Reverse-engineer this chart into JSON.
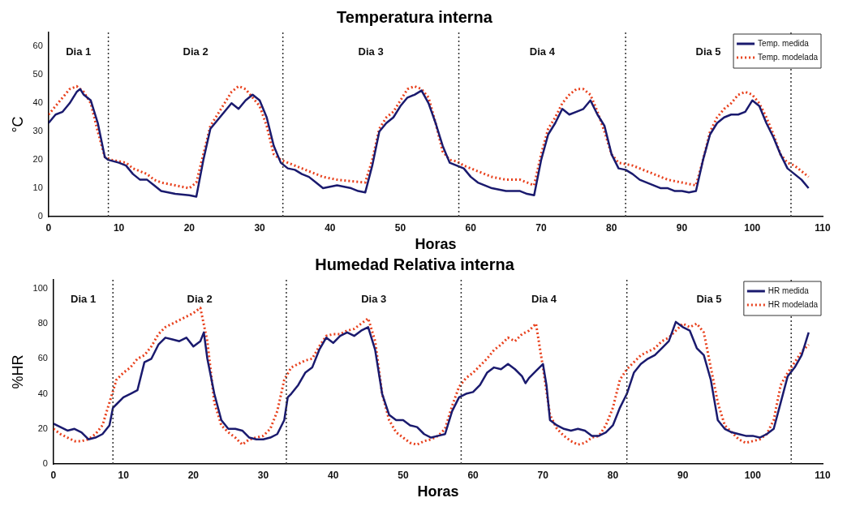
{
  "chart_data": [
    {
      "type": "line",
      "title": "Temperatura interna",
      "xlabel": "Horas",
      "ylabel": "°C",
      "xlim": [
        0,
        110
      ],
      "xticks": [
        0,
        10,
        20,
        30,
        40,
        50,
        60,
        70,
        80,
        90,
        100,
        110
      ],
      "ylim": [
        0,
        65
      ],
      "yticks": [
        0,
        10,
        20,
        30,
        40,
        50,
        60
      ],
      "grid": false,
      "legend": "top right",
      "marker": "none",
      "annotations": [
        "Dia 1",
        "Dia 2",
        "Dia 3",
        "Dia 4",
        "Dia 5"
      ],
      "ref_lines": [
        {
          "axis": "x",
          "value": 8.5,
          "color": "#333333",
          "line_style": "dotted"
        },
        {
          "axis": "x",
          "value": 33.3,
          "color": "#333333",
          "line_style": "dotted"
        },
        {
          "axis": "x",
          "value": 58.3,
          "color": "#333333",
          "line_style": "dotted"
        },
        {
          "axis": "x",
          "value": 82,
          "color": "#333333",
          "line_style": "dotted"
        },
        {
          "axis": "x",
          "value": 105.5,
          "color": "#333333",
          "line_style": "dotted"
        }
      ],
      "series": [
        {
          "name": "Temp. medida",
          "color": "#1a1a6e",
          "line_style": "solid",
          "x": [
            0,
            1,
            2,
            3,
            4,
            4.5,
            5,
            6,
            7,
            8,
            8.5,
            10,
            11,
            12,
            13,
            14,
            15,
            16,
            18,
            20,
            21,
            22,
            23,
            24,
            25,
            26,
            27,
            28,
            29,
            30,
            31,
            32,
            33,
            34,
            35,
            36,
            37,
            38,
            39,
            40,
            41,
            43,
            44,
            45,
            46,
            47,
            48,
            49,
            50,
            51,
            52,
            53,
            54,
            55,
            56,
            57,
            58,
            59,
            60,
            61,
            62,
            63,
            65,
            67,
            68,
            69,
            70,
            71,
            72,
            73,
            74,
            75,
            76,
            77,
            78,
            79,
            80,
            81,
            82,
            83,
            84,
            85,
            86,
            87,
            88,
            89,
            90,
            91,
            92,
            93,
            94,
            95,
            96,
            97,
            98,
            99,
            100,
            101,
            102,
            103,
            104,
            105,
            106,
            107,
            108
          ],
          "values": [
            33,
            36,
            37,
            40,
            44,
            45,
            43,
            41,
            33,
            21,
            20,
            19,
            18,
            15,
            13,
            13,
            11,
            9,
            8,
            7.5,
            7,
            20,
            31,
            34,
            37,
            40,
            38,
            41,
            43,
            41,
            35,
            25,
            19,
            17,
            16.5,
            15,
            14,
            12,
            10,
            10.5,
            11,
            10,
            9,
            8.5,
            18,
            30,
            33,
            35,
            39,
            42,
            43,
            44.5,
            40,
            33,
            25,
            19,
            18,
            17,
            14,
            12,
            11,
            10,
            9,
            9,
            8,
            7.5,
            20,
            29,
            33,
            38,
            36,
            37,
            38,
            41,
            36,
            32,
            22,
            17,
            16.5,
            15,
            13,
            12,
            11,
            10,
            10,
            9,
            9,
            8.5,
            9,
            20,
            29,
            33,
            35,
            36,
            36,
            37,
            41,
            39,
            33,
            28,
            22,
            17,
            15,
            13,
            10
          ]
        },
        {
          "name": "Temp. modelada",
          "color": "#e8401c",
          "line_style": "dotted",
          "x": [
            0,
            1,
            2,
            3,
            4,
            5,
            6,
            7,
            8,
            9,
            10,
            11,
            12,
            13,
            14,
            15,
            16,
            18,
            20,
            21,
            22,
            23,
            24,
            25,
            26,
            27,
            28,
            29,
            30,
            31,
            32,
            33,
            34,
            35,
            36,
            37,
            38,
            39,
            41,
            43,
            45,
            46,
            47,
            48,
            49,
            50,
            51,
            52,
            53,
            54,
            55,
            56,
            57,
            58,
            59,
            60,
            61,
            62,
            63,
            65,
            67,
            69,
            70,
            71,
            72,
            73,
            74,
            75,
            76,
            77,
            78,
            79,
            80,
            81,
            82,
            83,
            84,
            85,
            86,
            88,
            90,
            92,
            93,
            94,
            95,
            96,
            97,
            98,
            99,
            100,
            101,
            102,
            103,
            104,
            105,
            106,
            107,
            108
          ],
          "values": [
            36,
            39,
            42,
            45,
            46,
            44,
            40,
            30,
            21,
            20,
            19.5,
            19,
            17,
            16,
            15,
            13,
            12,
            11,
            10,
            12,
            22,
            32,
            36,
            40,
            44,
            46,
            45,
            42,
            39,
            32,
            22,
            20,
            19,
            18,
            17,
            16,
            15,
            14,
            13,
            12.5,
            12,
            20,
            31,
            35,
            37,
            41,
            45,
            46,
            45,
            42,
            33,
            23,
            20,
            19.5,
            18,
            17,
            16,
            15,
            14,
            13,
            13,
            11,
            22,
            31,
            35,
            40,
            43,
            45,
            45,
            43,
            37,
            30,
            22,
            19,
            18.5,
            18,
            17,
            16,
            15,
            13,
            12,
            11,
            20,
            30,
            35,
            38,
            40,
            43,
            44,
            43,
            40,
            35,
            29,
            22,
            19,
            18,
            16,
            14
          ]
        }
      ]
    },
    {
      "type": "line",
      "title": "Humedad Relativa interna",
      "xlabel": "Horas",
      "ylabel": "%HR",
      "xlim": [
        0,
        110
      ],
      "xticks": [
        0,
        10,
        20,
        30,
        40,
        50,
        60,
        70,
        80,
        90,
        100,
        110
      ],
      "ylim": [
        0,
        105
      ],
      "yticks": [
        0,
        20,
        40,
        60,
        80,
        100
      ],
      "grid": false,
      "legend": "top right",
      "marker": "none",
      "annotations": [
        "Dia 1",
        "Dia 2",
        "Dia 3",
        "Dia 4",
        "Dia 5"
      ],
      "ref_lines": [
        {
          "axis": "x",
          "value": 8.5,
          "color": "#333333",
          "line_style": "dotted"
        },
        {
          "axis": "x",
          "value": 33.3,
          "color": "#333333",
          "line_style": "dotted"
        },
        {
          "axis": "x",
          "value": 58.3,
          "color": "#333333",
          "line_style": "dotted"
        },
        {
          "axis": "x",
          "value": 82,
          "color": "#333333",
          "line_style": "dotted"
        },
        {
          "axis": "x",
          "value": 105.5,
          "color": "#333333",
          "line_style": "dotted"
        }
      ],
      "series": [
        {
          "name": "HR medida",
          "color": "#1a1a6e",
          "line_style": "solid",
          "x": [
            0,
            1,
            2,
            3,
            4,
            5,
            6,
            7,
            8,
            8.5,
            9,
            10,
            11,
            12,
            13,
            14,
            15,
            16,
            17,
            18,
            19,
            20,
            21,
            21.5,
            22,
            23,
            24,
            25,
            26,
            27,
            28,
            29,
            30,
            31,
            32,
            33,
            33.5,
            34,
            35,
            36,
            37,
            38,
            39,
            40,
            41,
            42,
            43,
            44,
            45,
            46,
            47,
            48,
            49,
            50,
            51,
            52,
            53,
            54,
            55,
            56,
            57,
            58,
            59,
            60,
            61,
            62,
            63,
            64,
            65,
            66,
            67,
            67.5,
            68,
            69,
            70,
            70.5,
            71,
            72,
            73,
            74,
            75,
            76,
            77,
            78,
            79,
            80,
            81,
            82,
            83,
            84,
            85,
            86,
            87,
            88,
            89,
            90,
            91,
            92,
            93,
            94,
            95,
            96,
            97,
            98,
            99,
            100,
            101,
            102,
            103,
            104,
            105,
            106,
            107,
            108
          ],
          "values": [
            23,
            21,
            19,
            20,
            18,
            14,
            15,
            17,
            22,
            32,
            34,
            38,
            40,
            42,
            58,
            60,
            68,
            72,
            71,
            70,
            72,
            67,
            70,
            75,
            60,
            40,
            25,
            20,
            20,
            19,
            15,
            14,
            14,
            15,
            17,
            25,
            38,
            40,
            45,
            52,
            55,
            65,
            72,
            69,
            73,
            75,
            73,
            76,
            78,
            65,
            40,
            28,
            25,
            25,
            22,
            21,
            17,
            15,
            16,
            17,
            30,
            38,
            40,
            41,
            45,
            52,
            55,
            54,
            57,
            54,
            50,
            46,
            49,
            53,
            57,
            45,
            25,
            22,
            20,
            19,
            20,
            19,
            16,
            16,
            18,
            22,
            32,
            40,
            52,
            57,
            60,
            62,
            66,
            70,
            81,
            78,
            76,
            66,
            62,
            48,
            25,
            20,
            18,
            17,
            16,
            16,
            15,
            17,
            20,
            35,
            50,
            55,
            62,
            75
          ]
        },
        {
          "name": "HR modelada",
          "color": "#e8401c",
          "line_style": "dotted",
          "x": [
            0,
            1,
            2,
            3,
            4,
            5,
            6,
            7,
            8,
            9,
            10,
            11,
            12,
            13,
            14,
            15,
            16,
            17,
            18,
            19,
            20,
            21,
            22,
            23,
            24,
            25,
            26,
            27,
            28,
            29,
            30,
            31,
            32,
            33,
            34,
            35,
            36,
            37,
            38,
            39,
            40,
            41,
            42,
            43,
            44,
            45,
            46,
            47,
            48,
            49,
            50,
            51,
            52,
            53,
            54,
            55,
            56,
            57,
            58,
            59,
            60,
            61,
            62,
            63,
            64,
            65,
            66,
            67,
            68,
            69,
            70,
            71,
            72,
            73,
            74,
            75,
            76,
            77,
            78,
            79,
            80,
            81,
            82,
            83,
            84,
            85,
            86,
            87,
            88,
            89,
            90,
            91,
            92,
            93,
            94,
            95,
            96,
            97,
            98,
            99,
            100,
            101,
            102,
            103,
            104,
            105,
            106,
            107,
            108
          ],
          "values": [
            20,
            17,
            15,
            13,
            13,
            14,
            17,
            22,
            35,
            48,
            52,
            55,
            60,
            62,
            67,
            74,
            78,
            80,
            82,
            84,
            86,
            89,
            70,
            35,
            22,
            18,
            15,
            11,
            14,
            15,
            16,
            20,
            30,
            48,
            55,
            57,
            59,
            60,
            67,
            73,
            74,
            74,
            76,
            77,
            80,
            83,
            70,
            40,
            25,
            18,
            15,
            12,
            11,
            13,
            14,
            16,
            20,
            33,
            44,
            49,
            52,
            56,
            60,
            65,
            68,
            72,
            70,
            74,
            76,
            80,
            55,
            28,
            20,
            16,
            13,
            11,
            12,
            15,
            16,
            22,
            32,
            48,
            54,
            58,
            62,
            64,
            66,
            70,
            72,
            76,
            80,
            78,
            80,
            75,
            55,
            35,
            22,
            18,
            14,
            12,
            13,
            14,
            17,
            25,
            45,
            52,
            58,
            64,
            68
          ]
        }
      ]
    }
  ]
}
